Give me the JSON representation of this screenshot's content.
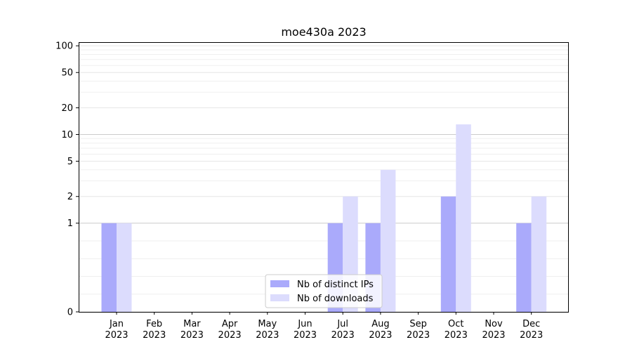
{
  "chart_data": {
    "type": "bar",
    "title": "moe430a 2023",
    "xlabel": "",
    "ylabel": "",
    "y_scale": "symlog",
    "ylim": [
      0,
      110
    ],
    "y_ticks": [
      0,
      1,
      2,
      5,
      10,
      20,
      50,
      100
    ],
    "y_tick_labels": [
      "0",
      "1",
      "2",
      "5",
      "10",
      "20",
      "50",
      "100"
    ],
    "grid": "horizontal",
    "legend_position": "bottom-center",
    "categories": [
      "Jan\n2023",
      "Feb\n2023",
      "Mar\n2023",
      "Apr\n2023",
      "May\n2023",
      "Jun\n2023",
      "Jul\n2023",
      "Aug\n2023",
      "Sep\n2023",
      "Oct\n2023",
      "Nov\n2023",
      "Dec\n2023"
    ],
    "series": [
      {
        "name": "Nb of distinct IPs",
        "color": "#aaaafb",
        "values": [
          1,
          0,
          0,
          0,
          0,
          0,
          1,
          1,
          0,
          2,
          0,
          1
        ]
      },
      {
        "name": "Nb of downloads",
        "color": "#dcdcfd",
        "values": [
          1,
          0,
          0,
          0,
          0,
          0,
          2,
          4,
          0,
          13,
          0,
          2
        ]
      }
    ]
  }
}
